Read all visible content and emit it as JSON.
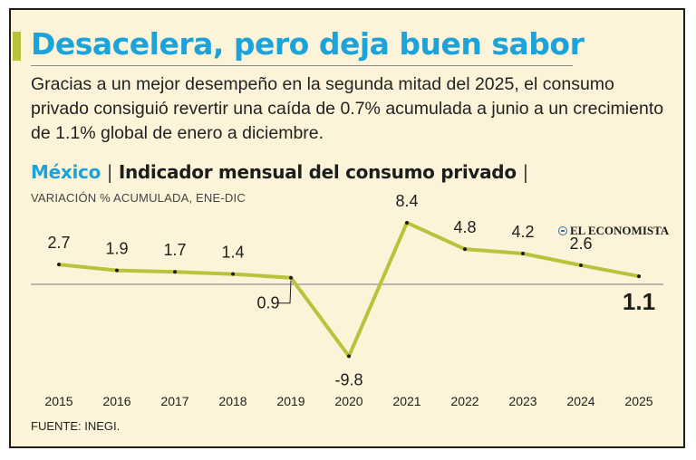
{
  "headline": "Desacelera, pero deja buen sabor",
  "subtitle": "Gracias a un mejor desempeño en la segunda mitad del 2025, el consumo privado consiguió revertir una caída de 0.7% acumulada a junio a un crecimiento de 1.1% global de enero a diciembre.",
  "chart_header": {
    "country": "México",
    "separator": "|",
    "title": "Indicador mensual del consumo privado",
    "trailing_separator": "|",
    "subtitle": "VARIACIÓN % ACUMULADA, ENE-DIC"
  },
  "brand": "EL ECONOMISTA",
  "source": "FUENTE: INEGI.",
  "colors": {
    "background": "#fdf3d9",
    "headline": "#1ca3d9",
    "accent": "#b9c23a",
    "line": "#b9c23a",
    "text": "#1d1d1b"
  },
  "chart_data": {
    "type": "line",
    "title": "Indicador mensual del consumo privado",
    "subtitle": "VARIACIÓN % ACUMULADA, ENE-DIC",
    "xlabel": "",
    "ylabel": "",
    "categories": [
      "2015",
      "2016",
      "2017",
      "2018",
      "2019",
      "2020",
      "2021",
      "2022",
      "2023",
      "2024",
      "2025"
    ],
    "series": [
      {
        "name": "Consumo privado",
        "values": [
          2.7,
          1.9,
          1.7,
          1.4,
          0.9,
          -9.8,
          8.4,
          4.8,
          4.2,
          2.6,
          1.1
        ],
        "labels": [
          "2.7",
          "1.9",
          "1.7",
          "1.4",
          "0.9",
          "-9.8",
          "8.4",
          "4.8",
          "4.2",
          "2.6",
          "1.1"
        ]
      }
    ],
    "ylim": [
      -10,
      10
    ],
    "baseline": 0,
    "grid": false,
    "legend": "none"
  }
}
